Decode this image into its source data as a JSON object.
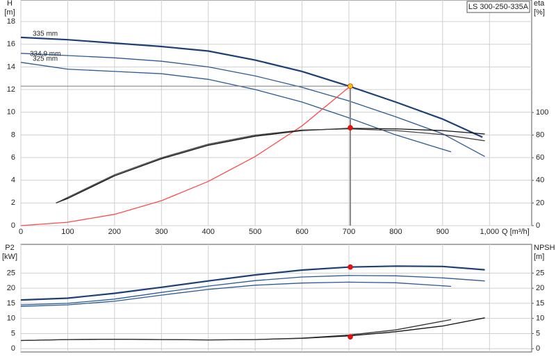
{
  "chart_data": [
    {
      "type": "line",
      "title": "LS 300-250-335A",
      "ylabel": "H",
      "yunit": "[m]",
      "y2label": "eta",
      "y2unit": "[%]",
      "xlabel": "Q [m³/h]",
      "xlim": [
        0,
        1090
      ],
      "ylim": [
        0,
        19.9
      ],
      "y2lim": [
        0,
        199.4
      ],
      "xticks": [
        0,
        100,
        200,
        300,
        400,
        500,
        600,
        700,
        800,
        900,
        {
          "value": 1000,
          "label": "1,000"
        }
      ],
      "yticks": [
        0,
        2,
        4,
        6,
        8,
        10,
        12,
        14,
        16,
        18
      ],
      "y2ticks": [
        0,
        20,
        40,
        60,
        80,
        100
      ],
      "grid": true,
      "show_xtick_labels": true,
      "reference_lines": true,
      "series": [
        {
          "name": "335 mm",
          "color": "#1c3f78",
          "x": [
            0,
            100,
            200,
            300,
            400,
            500,
            600,
            700,
            800,
            900,
            985
          ],
          "values": [
            16.6,
            16.4,
            16.1,
            15.8,
            15.4,
            14.6,
            13.6,
            12.3,
            10.9,
            9.4,
            7.8
          ]
        },
        {
          "name": "334.9 mm",
          "color": "#2a5a96",
          "x": [
            0,
            100,
            200,
            300,
            400,
            500,
            600,
            700,
            800,
            900,
            990
          ],
          "values": [
            15.2,
            15.0,
            14.8,
            14.5,
            14.0,
            13.2,
            12.2,
            11.0,
            9.6,
            8.1,
            6.1
          ]
        },
        {
          "name": "325 mm",
          "color": "#2a5a96",
          "x": [
            0,
            100,
            200,
            300,
            400,
            500,
            600,
            700,
            800,
            918
          ],
          "values": [
            14.4,
            13.8,
            13.6,
            13.4,
            12.9,
            12.0,
            10.9,
            9.5,
            8.0,
            6.5
          ]
        },
        {
          "color": "#ff4a4a",
          "x": [
            0,
            100,
            200,
            300,
            400,
            500,
            600,
            703
          ],
          "values": [
            0,
            0.3,
            1.0,
            2.2,
            3.9,
            6.1,
            8.8,
            12.3
          ]
        },
        {
          "color": "#111111",
          "axis": "y2",
          "x": [
            75,
            100,
            200,
            300,
            400,
            500,
            600,
            700,
            800,
            900,
            990
          ],
          "values": [
            20,
            24,
            44,
            59,
            71,
            79,
            84,
            86,
            85.5,
            84,
            81
          ]
        },
        {
          "color": "#444444",
          "axis": "y2",
          "x": [
            75,
            100,
            200,
            300,
            400,
            500,
            600,
            700,
            800,
            900,
            990
          ],
          "values": [
            20,
            25,
            45,
            60,
            72,
            80,
            84.5,
            85.5,
            84,
            80.5,
            75
          ]
        }
      ],
      "points": [
        {
          "x": 703,
          "y": 12.3,
          "color": "#f5c400"
        },
        {
          "x": 703,
          "y": 86.5,
          "axis": "y2",
          "color": "#e81010"
        }
      ]
    },
    {
      "type": "line",
      "ylabel": "P2",
      "yunit": "[kW]",
      "y2label": "NPSH",
      "y2unit": "[m]",
      "xlim": [
        0,
        1090
      ],
      "ylim": [
        -1.1,
        34.5
      ],
      "y2lim": [
        -1.1,
        34.5
      ],
      "xticks": [
        0,
        100,
        200,
        300,
        400,
        500,
        600,
        700,
        800,
        900,
        1000
      ],
      "yticks": [
        0,
        5,
        10,
        15,
        20,
        25
      ],
      "y2ticks": [
        0,
        5,
        10,
        15,
        20,
        25
      ],
      "grid": true,
      "show_xtick_labels": false,
      "reference_lines": false,
      "series": [
        {
          "color": "#1c3f78",
          "x": [
            0,
            100,
            200,
            300,
            400,
            500,
            600,
            700,
            800,
            900,
            990
          ],
          "values": [
            16.1,
            16.7,
            18.3,
            20.3,
            22.4,
            24.4,
            26.0,
            27.0,
            27.3,
            27.2,
            26.1
          ]
        },
        {
          "color": "#2a5a96",
          "x": [
            0,
            100,
            200,
            300,
            400,
            500,
            600,
            700,
            800,
            900,
            990
          ],
          "values": [
            14.5,
            15.0,
            16.4,
            18.6,
            20.7,
            22.5,
            23.7,
            24.2,
            24.1,
            23.4,
            22.4
          ]
        },
        {
          "color": "#2a5a96",
          "x": [
            0,
            100,
            200,
            300,
            400,
            500,
            600,
            700,
            800,
            918
          ],
          "values": [
            14.0,
            14.5,
            15.7,
            17.7,
            19.6,
            21.0,
            21.7,
            22.0,
            21.8,
            20.6
          ]
        },
        {
          "color": "#111111",
          "axis": "y2",
          "x": [
            0,
            100,
            200,
            300,
            400,
            500,
            600,
            700,
            800,
            900,
            990
          ],
          "values": [
            2.7,
            3.0,
            3.1,
            3.0,
            2.9,
            3.0,
            3.4,
            4.2,
            5.6,
            7.5,
            10.2
          ]
        },
        {
          "color": "#333333",
          "axis": "y2",
          "x": [
            0,
            100,
            200,
            300,
            400,
            500,
            600,
            700,
            800,
            918
          ],
          "values": [
            2.7,
            3.0,
            3.1,
            3.0,
            2.9,
            3.0,
            3.5,
            4.5,
            6.2,
            9.6
          ]
        }
      ],
      "points": [
        {
          "x": 703,
          "y": 27.0,
          "color": "#e81010"
        },
        {
          "x": 703,
          "y": 3.9,
          "axis": "y2",
          "color": "#e81010"
        }
      ]
    }
  ]
}
